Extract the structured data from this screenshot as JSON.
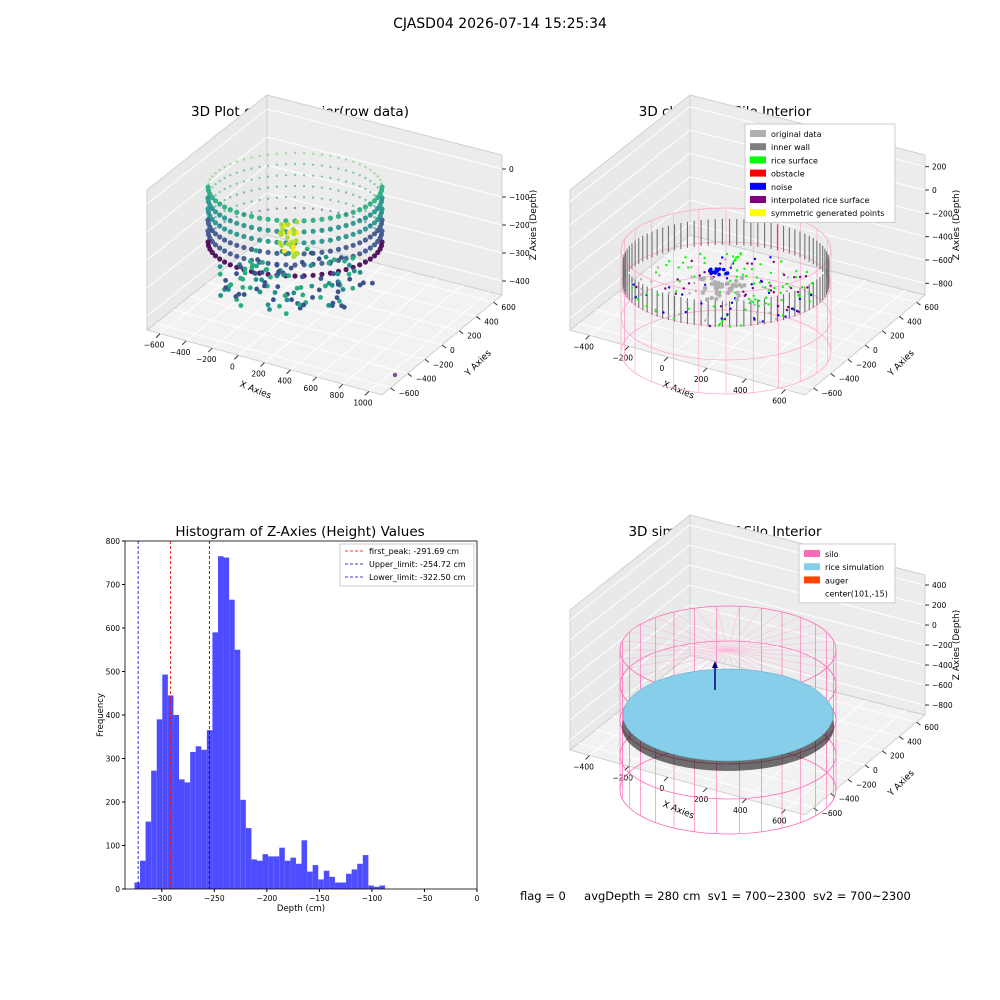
{
  "title": "CJASD04 2026-07-14 15:25:34",
  "status": {
    "flag": "flag = 0",
    "avg_depth": "avgDepth = 280 cm",
    "sv1": "sv1 = 700~2300",
    "sv2": "sv2 = 700~2300"
  },
  "chart_data": [
    {
      "type": "scatter",
      "title": "3D Plot of Silo Interior(row data)",
      "xlabel": "X Axies",
      "ylabel": "Y Axies",
      "zlabel": "Z Axies (Depth)",
      "x_ticks": [
        "−600",
        "−400",
        "−200",
        "0",
        "200",
        "400",
        "600",
        "800",
        "1000"
      ],
      "y_ticks": [
        "−600",
        "−400",
        "−200",
        "0",
        "200",
        "400",
        "600"
      ],
      "z_ticks": [
        "−400",
        "−300",
        "−200",
        "−100",
        "0"
      ],
      "colormap": "viridis"
    },
    {
      "type": "scatter",
      "title": "3D classify of Silo Interior",
      "xlabel": "X Axies",
      "ylabel": "Y Axies",
      "zlabel": "Z Axies (Depth)",
      "x_ticks": [
        "−400",
        "−200",
        "0",
        "200",
        "400",
        "600"
      ],
      "y_ticks": [
        "−600",
        "−400",
        "−200",
        "0",
        "200",
        "400",
        "600"
      ],
      "z_ticks": [
        "−800",
        "−600",
        "−400",
        "−200",
        "0",
        "200"
      ],
      "legend_position": "top-right",
      "legend": [
        {
          "label": "original data",
          "color": "#b0b0b0"
        },
        {
          "label": "inner wall",
          "color": "#808080"
        },
        {
          "label": "rice surface",
          "color": "#00ff00"
        },
        {
          "label": "obstacle",
          "color": "#ff0000"
        },
        {
          "label": "noise",
          "color": "#0000ff"
        },
        {
          "label": "interpolated rice surface",
          "color": "#800080"
        },
        {
          "label": "symmetric generated points",
          "color": "#ffff00"
        }
      ]
    },
    {
      "type": "bar",
      "title": "Histogram of Z-Axies (Height) Values",
      "xlabel": "Depth (cm)",
      "ylabel": "Frequency",
      "xlim": [
        -335,
        0
      ],
      "ylim": [
        0,
        800
      ],
      "x_ticks": [
        -300,
        -250,
        -200,
        -150,
        -100,
        -50,
        0
      ],
      "x_tick_labels": [
        "−300",
        "−250",
        "−200",
        "−150",
        "−100",
        "−50",
        "0"
      ],
      "y_ticks": [
        0,
        100,
        200,
        300,
        400,
        500,
        600,
        700,
        800
      ],
      "bin_start": -326,
      "bin_width": 5.3,
      "bar_color": "#4d4dff",
      "values": [
        15,
        65,
        155,
        272,
        390,
        493,
        445,
        400,
        252,
        245,
        315,
        328,
        320,
        365,
        590,
        765,
        762,
        665,
        550,
        205,
        140,
        68,
        65,
        80,
        75,
        75,
        95,
        65,
        72,
        58,
        112,
        40,
        55,
        22,
        42,
        28,
        15,
        15,
        35,
        45,
        58,
        78,
        8,
        5,
        8
      ],
      "vlines": [
        {
          "label": "first_peak: -291.69 cm",
          "x": -291.69,
          "color": "#ff0000"
        },
        {
          "label": "Upper_limit: -254.72 cm",
          "x": -254.72,
          "color": "#00008b"
        },
        {
          "label": "Lower_limit: -322.50 cm",
          "x": -322.5,
          "color": "#0000cd"
        }
      ],
      "legend_position": "top-right"
    },
    {
      "type": "scatter",
      "title": "3D simulation of Silo Interior",
      "xlabel": "X Axies",
      "ylabel": "Y Axies",
      "zlabel": "Z Axies (Depth)",
      "x_ticks": [
        "−400",
        "−200",
        "0",
        "200",
        "400",
        "600"
      ],
      "y_ticks": [
        "−600",
        "−400",
        "−200",
        "0",
        "200",
        "400",
        "600"
      ],
      "z_ticks": [
        "−800",
        "−600",
        "−400",
        "−200",
        "0",
        "200",
        "400"
      ],
      "legend_position": "top-right",
      "legend": [
        {
          "label": "silo",
          "color": "#ff69b4"
        },
        {
          "label": "rice simulation",
          "color": "#87ceeb"
        },
        {
          "label": "auger",
          "color": "#ff4500"
        },
        {
          "label": "center(101,-15)",
          "color": ""
        }
      ]
    }
  ]
}
